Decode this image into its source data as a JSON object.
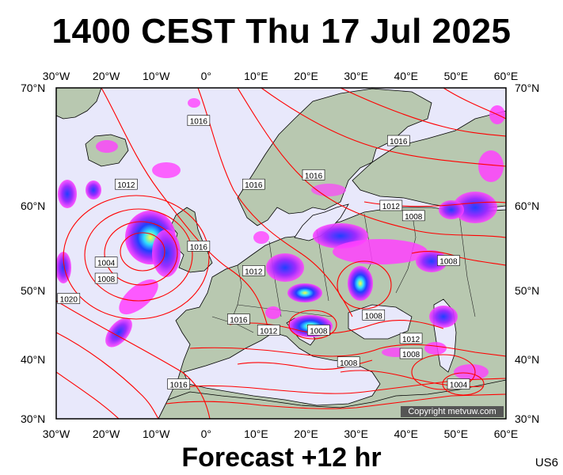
{
  "title": "1400 CEST Thu 17 Jul 2025",
  "subtitle": "Forecast +12 hr",
  "code": "US6",
  "copyright": "Copyright metvuw.com",
  "lon_ticks": [
    "30°W",
    "20°W",
    "10°W",
    "0°",
    "10°E",
    "20°E",
    "30°E",
    "40°E",
    "50°E",
    "60°E"
  ],
  "lat_ticks": [
    "70°N",
    "60°N",
    "50°N",
    "40°N",
    "30°N"
  ],
  "colors": {
    "ocean": "#e8e8fb",
    "land": "#b8c8b0",
    "isobar": "#ff0000",
    "rain_light": "#ff40ff",
    "rain_mid": "#9a2cff",
    "rain_heavy": "#2040ff",
    "rain_extreme": "#30e0ff",
    "rain_peak": "#ffff40"
  },
  "isobar_labels": [
    {
      "text": "1016",
      "lon": -1.5,
      "lat": 67.2
    },
    {
      "text": "1016",
      "lon": 38.5,
      "lat": 65.5
    },
    {
      "text": "1016",
      "lon": 21.5,
      "lat": 62.6
    },
    {
      "text": "1016",
      "lon": 9.5,
      "lat": 61.8
    },
    {
      "text": "1012",
      "lon": -16,
      "lat": 61.8
    },
    {
      "text": "1012",
      "lon": 37,
      "lat": 60
    },
    {
      "text": "1008",
      "lon": 41.5,
      "lat": 58.8
    },
    {
      "text": "1016",
      "lon": -1.5,
      "lat": 55.2
    },
    {
      "text": "1004",
      "lon": -20,
      "lat": 53.3
    },
    {
      "text": "1008",
      "lon": -20,
      "lat": 51.4
    },
    {
      "text": "1012",
      "lon": 9.5,
      "lat": 52.3
    },
    {
      "text": "1008",
      "lon": 48.5,
      "lat": 53.5
    },
    {
      "text": "1020",
      "lon": -27.5,
      "lat": 48.8
    },
    {
      "text": "1016",
      "lon": 6.5,
      "lat": 45.8
    },
    {
      "text": "1008",
      "lon": 33.5,
      "lat": 46.4
    },
    {
      "text": "1012",
      "lon": 12.5,
      "lat": 44.2
    },
    {
      "text": "1008",
      "lon": 22.5,
      "lat": 44.2
    },
    {
      "text": "1012",
      "lon": 41,
      "lat": 43
    },
    {
      "text": "1008",
      "lon": 41,
      "lat": 40.8
    },
    {
      "text": "1008",
      "lon": 28.5,
      "lat": 39.5
    },
    {
      "text": "1016",
      "lon": -5.5,
      "lat": 35.8
    },
    {
      "text": "1004",
      "lon": 50.5,
      "lat": 35.8
    }
  ]
}
